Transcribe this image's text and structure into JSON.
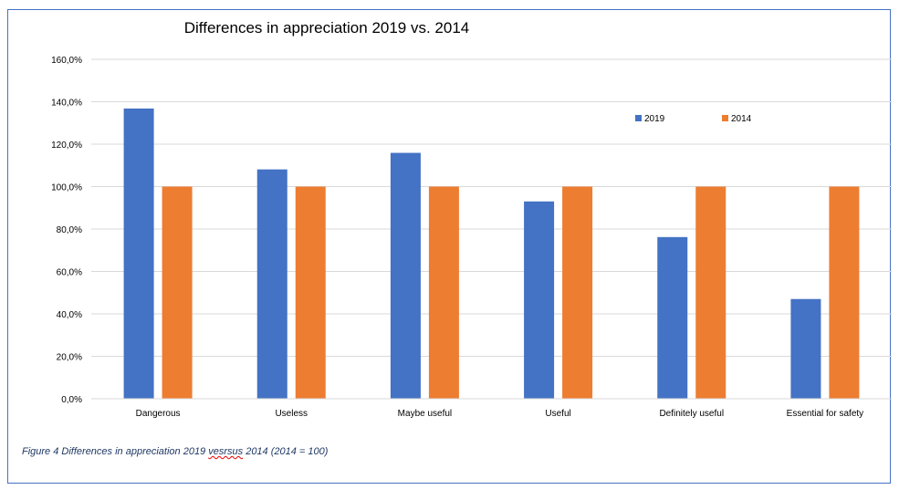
{
  "chart_data": {
    "type": "bar",
    "title": "Differences in appreciation 2019 vs. 2014",
    "categories": [
      "Dangerous",
      "Useless",
      "Maybe useful",
      "Useful",
      "Definitely useful",
      "Essential for safety"
    ],
    "series": [
      {
        "name": "2019",
        "color": "#4472c4",
        "values": [
          136.8,
          108.1,
          115.9,
          93.0,
          76.2,
          47.0
        ]
      },
      {
        "name": "2014",
        "color": "#ed7d31",
        "values": [
          100,
          100,
          100,
          100,
          100,
          100
        ]
      }
    ],
    "ylim": [
      0,
      160
    ],
    "yticks": [
      "0,0%",
      "20,0%",
      "40,0%",
      "60,0%",
      "80,0%",
      "100,0%",
      "120,0%",
      "140,0%",
      "160,0%"
    ],
    "grid": true,
    "legend": "top-right"
  },
  "caption": {
    "pre": "Figure 4  Differences in appreciation 2019 ",
    "misspelled": "vesrsus",
    "post": " 2014 (2014 = 100)"
  }
}
